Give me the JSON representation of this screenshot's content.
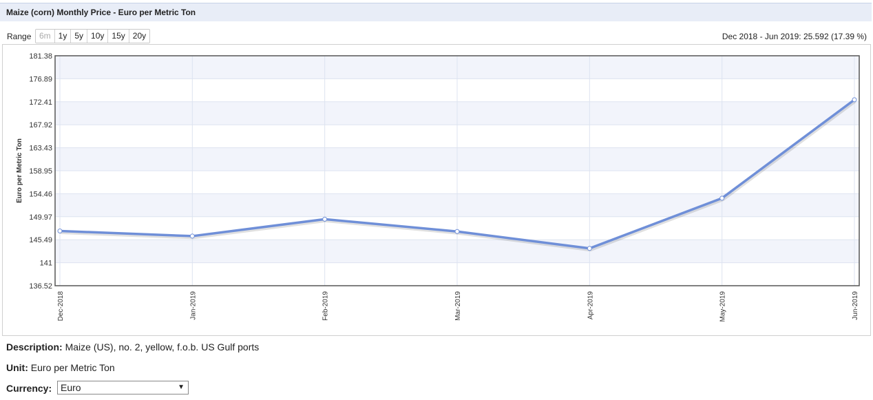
{
  "title": "Maize (corn) Monthly Price - Euro per Metric Ton",
  "range": {
    "label": "Range",
    "options": [
      "6m",
      "1y",
      "5y",
      "10y",
      "15y",
      "20y"
    ],
    "disabled": "6m"
  },
  "change_text": "Dec 2018 - Jun 2019: 25.592 (17.39 %)",
  "description": {
    "label": "Description:",
    "value": "Maize (US), no. 2, yellow, f.o.b. US Gulf ports"
  },
  "unit": {
    "label": "Unit:",
    "value": "Euro per Metric Ton"
  },
  "currency": {
    "label": "Currency:",
    "selected": "Euro"
  },
  "colors": {
    "line": "#6f8fd8",
    "band": "#f2f4fb",
    "grid": "#dde3f0",
    "frame": "#555555"
  },
  "chart_data": {
    "type": "line",
    "title": "",
    "xlabel": "",
    "ylabel": "Euro per Metric Ton",
    "categories": [
      "Dec-2018",
      "Jan-2019",
      "Feb-2019",
      "Mar-2019",
      "Apr-2019",
      "May-2019",
      "Jun-2019"
    ],
    "series": [
      {
        "values": [
          147.2,
          146.2,
          149.5,
          147.1,
          143.8,
          153.6,
          172.8
        ]
      }
    ],
    "yticks": [
      "181.38",
      "176.89",
      "172.41",
      "167.92",
      "163.43",
      "158.95",
      "154.46",
      "149.97",
      "145.49",
      "141",
      "136.52"
    ],
    "ylim": [
      136.52,
      181.38
    ],
    "grid": true,
    "legend": "none"
  }
}
